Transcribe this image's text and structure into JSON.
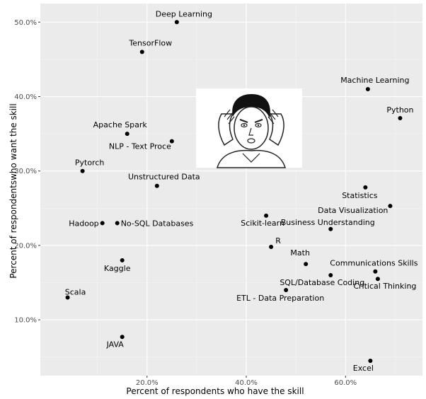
{
  "chart_data": {
    "type": "scatter",
    "xlabel": "Percent of respondents who have the skill",
    "ylabel": "Percent of respondentswho want the skill",
    "x_tick_labels": [
      {
        "value": 20,
        "label": "20.0%"
      },
      {
        "value": 40,
        "label": "40.0%"
      },
      {
        "value": 60,
        "label": "60.0%"
      }
    ],
    "y_tick_labels": [
      {
        "value": 10,
        "label": "10.0%"
      },
      {
        "value": 20,
        "label": "20.0%"
      },
      {
        "value": 30,
        "label": "30.0%"
      },
      {
        "value": 40,
        "label": "40.0%"
      },
      {
        "value": 50,
        "label": "50.0%"
      }
    ],
    "xlim": [
      -1.5,
      75.5
    ],
    "ylim": [
      2.5,
      52.5
    ],
    "grid": true,
    "points": [
      {
        "label": "Deep Learning",
        "x": 26.0,
        "y": 50.0
      },
      {
        "label": "TensorFlow",
        "x": 19.0,
        "y": 46.0
      },
      {
        "label": "Machine Learning",
        "x": 64.5,
        "y": 41.0
      },
      {
        "label": "Python",
        "x": 71.0,
        "y": 37.1
      },
      {
        "label": "Apache Spark",
        "x": 16.0,
        "y": 35.0
      },
      {
        "label": "NLP - Text Proce",
        "x": 25.0,
        "y": 34.0
      },
      {
        "label": "Pytorch",
        "x": 7.0,
        "y": 30.0
      },
      {
        "label": "Unstructured Data",
        "x": 22.0,
        "y": 28.0
      },
      {
        "label": "Statistics",
        "x": 64.0,
        "y": 27.8
      },
      {
        "label": "Data Visualization",
        "x": 69.0,
        "y": 25.3
      },
      {
        "label": "Hadoop",
        "x": 11.0,
        "y": 23.0
      },
      {
        "label": "No-SQL Databases",
        "x": 14.0,
        "y": 23.0
      },
      {
        "label": "Scikit-learn",
        "x": 44.0,
        "y": 24.0
      },
      {
        "label": "Business Understanding",
        "x": 57.0,
        "y": 22.2
      },
      {
        "label": "R",
        "x": 45.0,
        "y": 19.8
      },
      {
        "label": "Math",
        "x": 52.0,
        "y": 17.5
      },
      {
        "label": "Kaggle",
        "x": 15.0,
        "y": 18.0
      },
      {
        "label": "Communications Skills",
        "x": 66.0,
        "y": 16.5
      },
      {
        "label": "SQL/Database Coding",
        "x": 57.0,
        "y": 16.0
      },
      {
        "label": "Critical Thinking",
        "x": 66.5,
        "y": 15.5
      },
      {
        "label": "ETL - Data Preparation",
        "x": 48.0,
        "y": 14.0
      },
      {
        "label": "Scala",
        "x": 4.0,
        "y": 13.0
      },
      {
        "label": "JAVA",
        "x": 15.0,
        "y": 7.7
      },
      {
        "label": "Excel",
        "x": 65.0,
        "y": 4.5
      }
    ]
  },
  "colors": {
    "panel": "#ebebeb",
    "grid_major": "#ffffff",
    "point": "#000000"
  },
  "image": {
    "alt": "meme",
    "icon": "meme-face-icon"
  }
}
